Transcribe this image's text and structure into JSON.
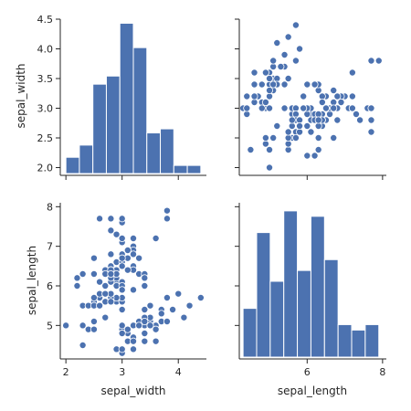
{
  "chart_data": {
    "type": "pairplot",
    "variables": [
      "sepal_width",
      "sepal_length"
    ],
    "colors": {
      "series": "#4c72b0",
      "marker_edge": "#ffffff",
      "axis": "#262626"
    },
    "axes": {
      "sepal_width": {
        "label": "sepal_width",
        "range": [
          1.9,
          4.5
        ],
        "ticks": [
          2.0,
          2.5,
          3.0,
          3.5,
          4.0,
          4.5
        ],
        "tick_labels": [
          "2.0",
          "2.5",
          "3.0",
          "3.5",
          "4.0",
          "4.5"
        ],
        "bottom_ticks": [
          2,
          3,
          4
        ],
        "bottom_tick_labels": [
          "2",
          "3",
          "4"
        ]
      },
      "sepal_length": {
        "label": "sepal_length",
        "range": [
          4.2,
          8.1
        ],
        "ticks": [
          5,
          6,
          7,
          8
        ],
        "tick_labels": [
          "5",
          "6",
          "7",
          "8"
        ],
        "bottom_ticks": [
          6,
          8
        ],
        "bottom_tick_labels": [
          "6",
          "8"
        ]
      }
    },
    "panels": [
      {
        "type": "histogram",
        "variable": "sepal_width",
        "bins": [
          {
            "x0": 2.0,
            "x1": 2.24,
            "count": 4
          },
          {
            "x0": 2.24,
            "x1": 2.48,
            "count": 7
          },
          {
            "x0": 2.48,
            "x1": 2.72,
            "count": 22
          },
          {
            "x0": 2.72,
            "x1": 2.96,
            "count": 24
          },
          {
            "x0": 2.96,
            "x1": 3.2,
            "count": 37
          },
          {
            "x0": 3.2,
            "x1": 3.44,
            "count": 31
          },
          {
            "x0": 3.44,
            "x1": 3.68,
            "count": 10
          },
          {
            "x0": 3.68,
            "x1": 3.92,
            "count": 11
          },
          {
            "x0": 3.92,
            "x1": 4.16,
            "count": 2
          },
          {
            "x0": 4.16,
            "x1": 4.4,
            "count": 2
          }
        ]
      },
      {
        "type": "histogram",
        "variable": "sepal_length",
        "bins": [
          {
            "x0": 4.3,
            "x1": 4.66,
            "count": 9
          },
          {
            "x0": 4.66,
            "x1": 5.02,
            "count": 23
          },
          {
            "x0": 5.02,
            "x1": 5.38,
            "count": 14
          },
          {
            "x0": 5.38,
            "x1": 5.74,
            "count": 27
          },
          {
            "x0": 5.74,
            "x1": 6.1,
            "count": 16
          },
          {
            "x0": 6.1,
            "x1": 6.46,
            "count": 26
          },
          {
            "x0": 6.46,
            "x1": 6.82,
            "count": 18
          },
          {
            "x0": 6.82,
            "x1": 7.18,
            "count": 6
          },
          {
            "x0": 7.18,
            "x1": 7.54,
            "count": 5
          },
          {
            "x0": 7.54,
            "x1": 7.9,
            "count": 6
          }
        ]
      },
      {
        "type": "scatter",
        "x": "sepal_width",
        "y": "sepal_length",
        "points": [
          [
            3.5,
            5.1
          ],
          [
            3.0,
            4.9
          ],
          [
            3.2,
            4.7
          ],
          [
            3.1,
            4.6
          ],
          [
            3.6,
            5.0
          ],
          [
            3.9,
            5.4
          ],
          [
            3.4,
            4.6
          ],
          [
            3.4,
            5.0
          ],
          [
            2.9,
            4.4
          ],
          [
            3.1,
            4.9
          ],
          [
            3.7,
            5.4
          ],
          [
            3.4,
            4.8
          ],
          [
            3.0,
            4.8
          ],
          [
            3.0,
            4.3
          ],
          [
            4.0,
            5.8
          ],
          [
            4.4,
            5.7
          ],
          [
            3.9,
            5.4
          ],
          [
            3.5,
            5.1
          ],
          [
            3.8,
            5.7
          ],
          [
            3.8,
            5.1
          ],
          [
            3.4,
            5.4
          ],
          [
            3.7,
            5.1
          ],
          [
            3.6,
            4.6
          ],
          [
            3.3,
            5.1
          ],
          [
            3.4,
            4.8
          ],
          [
            3.0,
            5.0
          ],
          [
            3.4,
            5.0
          ],
          [
            3.5,
            5.2
          ],
          [
            3.4,
            5.2
          ],
          [
            3.2,
            4.7
          ],
          [
            3.1,
            4.8
          ],
          [
            3.4,
            5.4
          ],
          [
            4.1,
            5.2
          ],
          [
            4.2,
            5.5
          ],
          [
            3.1,
            4.9
          ],
          [
            3.2,
            5.0
          ],
          [
            3.5,
            5.5
          ],
          [
            3.6,
            4.9
          ],
          [
            3.0,
            4.4
          ],
          [
            3.4,
            5.1
          ],
          [
            3.5,
            5.0
          ],
          [
            2.3,
            4.5
          ],
          [
            3.2,
            4.4
          ],
          [
            3.5,
            5.0
          ],
          [
            3.8,
            5.1
          ],
          [
            3.0,
            4.8
          ],
          [
            3.8,
            5.1
          ],
          [
            3.2,
            4.6
          ],
          [
            3.7,
            5.3
          ],
          [
            3.3,
            5.0
          ],
          [
            3.2,
            7.0
          ],
          [
            3.2,
            6.4
          ],
          [
            3.1,
            6.9
          ],
          [
            2.3,
            5.5
          ],
          [
            2.8,
            6.5
          ],
          [
            2.8,
            5.7
          ],
          [
            3.3,
            6.3
          ],
          [
            2.4,
            4.9
          ],
          [
            2.9,
            6.6
          ],
          [
            2.7,
            5.2
          ],
          [
            2.0,
            5.0
          ],
          [
            3.0,
            5.9
          ],
          [
            2.2,
            6.0
          ],
          [
            2.9,
            6.1
          ],
          [
            2.9,
            5.6
          ],
          [
            3.1,
            6.7
          ],
          [
            3.0,
            5.6
          ],
          [
            2.7,
            5.8
          ],
          [
            2.2,
            6.2
          ],
          [
            2.5,
            5.6
          ],
          [
            3.2,
            5.9
          ],
          [
            2.8,
            6.1
          ],
          [
            2.5,
            6.3
          ],
          [
            2.8,
            6.1
          ],
          [
            2.9,
            6.4
          ],
          [
            3.0,
            6.6
          ],
          [
            2.8,
            6.8
          ],
          [
            3.0,
            6.7
          ],
          [
            2.9,
            6.0
          ],
          [
            2.6,
            5.7
          ],
          [
            2.4,
            5.5
          ],
          [
            2.4,
            5.5
          ],
          [
            2.7,
            5.8
          ],
          [
            2.7,
            6.0
          ],
          [
            3.0,
            5.4
          ],
          [
            3.4,
            6.0
          ],
          [
            3.1,
            6.7
          ],
          [
            2.3,
            6.3
          ],
          [
            3.0,
            5.6
          ],
          [
            2.5,
            5.5
          ],
          [
            2.6,
            5.5
          ],
          [
            3.0,
            6.1
          ],
          [
            2.6,
            5.8
          ],
          [
            2.3,
            5.0
          ],
          [
            2.7,
            5.6
          ],
          [
            3.0,
            5.7
          ],
          [
            2.9,
            5.7
          ],
          [
            2.9,
            6.2
          ],
          [
            2.5,
            5.1
          ],
          [
            2.8,
            5.7
          ],
          [
            3.3,
            6.3
          ],
          [
            2.7,
            5.8
          ],
          [
            3.0,
            7.1
          ],
          [
            2.9,
            6.3
          ],
          [
            3.0,
            6.5
          ],
          [
            3.0,
            7.6
          ],
          [
            2.5,
            4.9
          ],
          [
            2.9,
            7.3
          ],
          [
            2.5,
            6.7
          ],
          [
            3.6,
            7.2
          ],
          [
            3.2,
            6.5
          ],
          [
            2.7,
            6.4
          ],
          [
            3.0,
            6.8
          ],
          [
            2.5,
            5.7
          ],
          [
            2.8,
            5.8
          ],
          [
            3.2,
            6.4
          ],
          [
            3.0,
            6.5
          ],
          [
            3.8,
            7.7
          ],
          [
            2.6,
            7.7
          ],
          [
            2.2,
            6.0
          ],
          [
            3.2,
            6.9
          ],
          [
            2.8,
            5.6
          ],
          [
            2.8,
            7.7
          ],
          [
            2.7,
            6.3
          ],
          [
            3.3,
            6.7
          ],
          [
            3.2,
            7.2
          ],
          [
            2.8,
            6.2
          ],
          [
            3.0,
            6.1
          ],
          [
            2.8,
            6.4
          ],
          [
            3.0,
            7.2
          ],
          [
            2.8,
            7.4
          ],
          [
            3.8,
            7.9
          ],
          [
            2.8,
            6.4
          ],
          [
            2.8,
            6.3
          ],
          [
            2.6,
            6.1
          ],
          [
            3.0,
            7.7
          ],
          [
            3.4,
            6.3
          ],
          [
            3.1,
            6.4
          ],
          [
            3.0,
            6.0
          ],
          [
            3.1,
            6.9
          ],
          [
            3.1,
            6.7
          ],
          [
            3.1,
            6.9
          ],
          [
            2.7,
            5.8
          ],
          [
            3.2,
            6.8
          ],
          [
            3.3,
            6.7
          ],
          [
            3.0,
            6.7
          ],
          [
            2.5,
            6.3
          ],
          [
            3.0,
            6.5
          ],
          [
            3.4,
            6.2
          ],
          [
            3.0,
            5.9
          ]
        ]
      },
      {
        "type": "scatter",
        "x": "sepal_length",
        "y": "sepal_width",
        "transpose_of": 2
      }
    ]
  }
}
